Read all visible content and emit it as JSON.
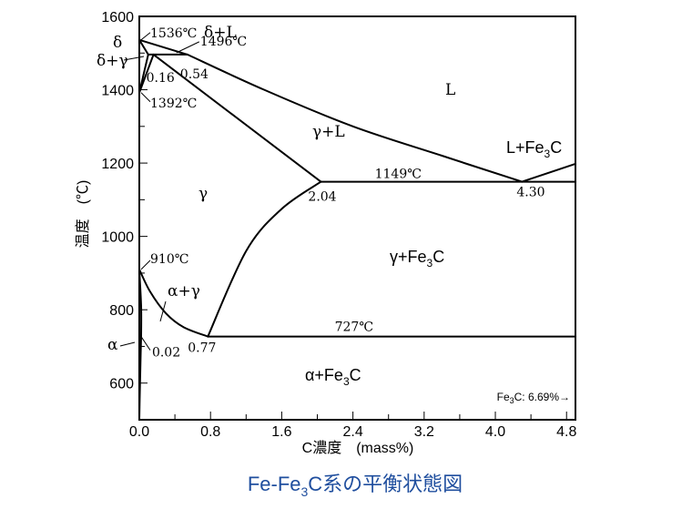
{
  "chart_data": {
    "type": "line",
    "title": "",
    "caption": {
      "pre": "Fe-Fe",
      "sub": "3",
      "post": "C系の平衡状態図"
    },
    "xlabel": "C濃度　(mass%)",
    "ylabel": "温度　(℃)",
    "xlim": [
      0,
      4.9
    ],
    "ylim": [
      500,
      1600
    ],
    "x_ticks": [
      0.0,
      0.8,
      1.6,
      2.4,
      3.2,
      4.0,
      4.8
    ],
    "x_tick_labels": [
      "0.0",
      "0.8",
      "1.6",
      "2.4",
      "3.2",
      "4.0",
      "4.8"
    ],
    "y_ticks": [
      600,
      800,
      1000,
      1200,
      1400,
      1600
    ],
    "y_tick_labels": [
      "600",
      "800",
      "1000",
      "1200",
      "1400",
      "1600"
    ],
    "grid": false,
    "series": [
      {
        "id": "liquidus-delta",
        "points": [
          [
            0,
            1536
          ],
          [
            0.54,
            1496
          ]
        ]
      },
      {
        "id": "liquidus-main",
        "points": [
          [
            0.54,
            1496
          ],
          [
            1.4,
            1400
          ],
          [
            2.4,
            1300
          ],
          [
            3.4,
            1220
          ],
          [
            4.3,
            1149
          ]
        ]
      },
      {
        "id": "liquidus-fe3c",
        "points": [
          [
            4.3,
            1149
          ],
          [
            4.9,
            1198
          ]
        ]
      },
      {
        "id": "solidus-gamma",
        "points": [
          [
            0.16,
            1496
          ],
          [
            2.04,
            1149
          ]
        ]
      },
      {
        "id": "peritectic-line",
        "points": [
          [
            0.1,
            1496
          ],
          [
            0.54,
            1496
          ]
        ]
      },
      {
        "id": "delta-solidus",
        "points": [
          [
            0,
            1536
          ],
          [
            0.1,
            1496
          ]
        ]
      },
      {
        "id": "delta-solvus",
        "points": [
          [
            0.1,
            1496
          ],
          [
            0,
            1392
          ]
        ]
      },
      {
        "id": "delta-gamma-boundary",
        "points": [
          [
            0.16,
            1496
          ],
          [
            0,
            1392
          ]
        ]
      },
      {
        "id": "eutectic-line",
        "points": [
          [
            2.04,
            1149
          ],
          [
            4.9,
            1149
          ]
        ]
      },
      {
        "id": "acm-line",
        "points": [
          [
            2.04,
            1149
          ],
          [
            1.6,
            1075
          ],
          [
            1.2,
            960
          ],
          [
            0.77,
            727
          ]
        ]
      },
      {
        "id": "a3-line",
        "points": [
          [
            0,
            910
          ],
          [
            0.12,
            850
          ],
          [
            0.3,
            790
          ],
          [
            0.5,
            752
          ],
          [
            0.77,
            727
          ]
        ]
      },
      {
        "id": "eutectoid-line",
        "points": [
          [
            0.77,
            727
          ],
          [
            4.9,
            727
          ]
        ]
      },
      {
        "id": "alpha-solvus-upper",
        "points": [
          [
            0,
            910
          ],
          [
            0.02,
            810
          ],
          [
            0.02,
            727
          ]
        ]
      },
      {
        "id": "alpha-solvus-lower",
        "points": [
          [
            0.02,
            727
          ],
          [
            0.015,
            680
          ],
          [
            0.008,
            600
          ],
          [
            0,
            500
          ]
        ]
      }
    ],
    "point_labels": [
      {
        "text": "1536℃",
        "x": 0.0,
        "y": 1536
      },
      {
        "text": "1496℃",
        "x": 0.54,
        "y": 1496
      },
      {
        "text": "0.16",
        "x": 0.16,
        "y": 1496
      },
      {
        "text": "0.54",
        "x": 0.54,
        "y": 1496
      },
      {
        "text": "1392℃",
        "x": 0.0,
        "y": 1392
      },
      {
        "text": "1149℃",
        "x": 2.85,
        "y": 1149
      },
      {
        "text": "2.04",
        "x": 2.04,
        "y": 1149
      },
      {
        "text": "4.30",
        "x": 4.3,
        "y": 1149
      },
      {
        "text": "910℃",
        "x": 0.0,
        "y": 910
      },
      {
        "text": "727℃",
        "x": 2.4,
        "y": 727
      },
      {
        "text": "0.02",
        "x": 0.02,
        "y": 727
      },
      {
        "text": "0.77",
        "x": 0.77,
        "y": 727
      }
    ],
    "region_labels": [
      {
        "text": "δ",
        "x": -0.25,
        "y": 1565,
        "outside": true
      },
      {
        "text": "δ+L",
        "x": 0.9,
        "y": 1560
      },
      {
        "text": "δ+γ",
        "x": -0.35,
        "y": 1478,
        "outside": true
      },
      {
        "text": "L",
        "x": 3.5,
        "y": 1400
      },
      {
        "text": "γ+L",
        "x": 2.1,
        "y": 1282
      },
      {
        "text": "γ",
        "x": 0.72,
        "y": 1110
      },
      {
        "text": "α+γ",
        "x": 0.48,
        "y": 830
      },
      {
        "text": "α",
        "x": -0.3,
        "y": 700,
        "outside": true
      },
      {
        "text": "α+Fe",
        "sub": "3",
        "post": "C",
        "x": 1.9,
        "y": 1000
      },
      {
        "text": "α+Fe",
        "sub": "3",
        "post": "C",
        "x": 1.9,
        "y": 600
      },
      {
        "text": "L+Fe",
        "sub": "3",
        "post": "C",
        "x": 4.1,
        "y": 1245
      }
    ],
    "note": {
      "pre": "Fe",
      "sub": "3",
      "post": "C: 6.69%→"
    }
  }
}
